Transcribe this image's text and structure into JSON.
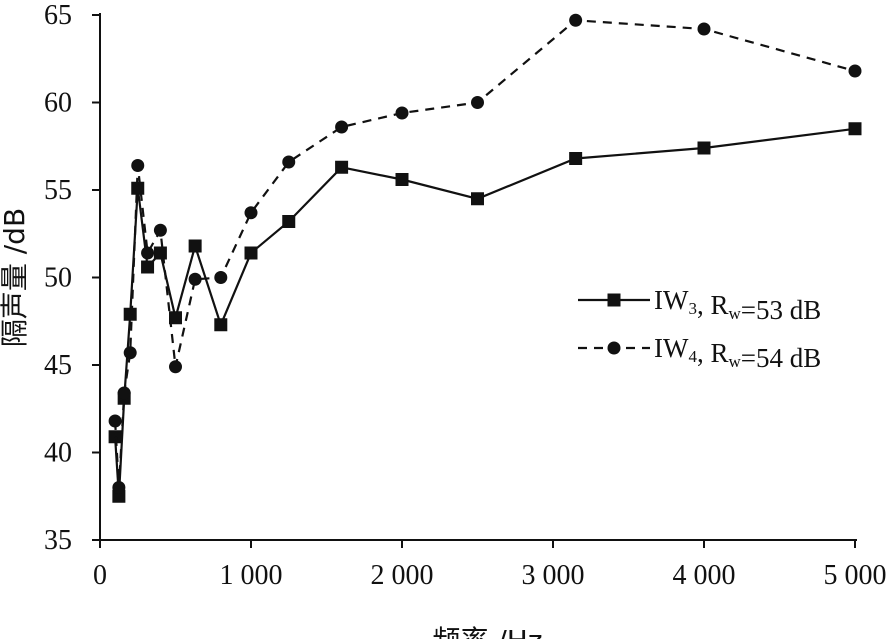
{
  "chart_data": {
    "type": "line",
    "xlabel": "频率 /Hz",
    "ylabel": "隔声量 /dB",
    "xlim": [
      0,
      5000
    ],
    "ylim": [
      35,
      65
    ],
    "xticks": [
      0,
      1000,
      2000,
      3000,
      4000,
      5000
    ],
    "xtick_labels": [
      "0",
      "1 000",
      "2 000",
      "3 000",
      "4 000",
      "5 000"
    ],
    "yticks": [
      35,
      40,
      45,
      50,
      55,
      60,
      65
    ],
    "ytick_labels": [
      "35",
      "40",
      "45",
      "50",
      "55",
      "60",
      "65"
    ],
    "grid": false,
    "legend_position": "right",
    "x": [
      100,
      125,
      160,
      200,
      250,
      315,
      400,
      500,
      630,
      800,
      1000,
      1250,
      1600,
      2000,
      2500,
      3150,
      4000,
      5000
    ],
    "series": [
      {
        "name": "IW3, Rw=53 dB",
        "legend_main": "IW",
        "legend_sub": "3",
        "legend_mid": ", R",
        "legend_sub2": "w",
        "legend_tail": "=53 dB",
        "marker": "square",
        "line_style": "solid",
        "color": "#111111",
        "values": [
          40.9,
          37.5,
          43.1,
          47.9,
          55.1,
          50.6,
          51.4,
          47.7,
          51.8,
          47.3,
          51.4,
          53.2,
          56.3,
          55.6,
          54.5,
          56.8,
          57.4,
          58.5
        ]
      },
      {
        "name": "IW4, Rw=54 dB",
        "legend_main": "IW",
        "legend_sub": "4",
        "legend_mid": ", R",
        "legend_sub2": "w",
        "legend_tail": "=54 dB",
        "marker": "circle",
        "line_style": "dashed",
        "color": "#111111",
        "values": [
          41.8,
          38.0,
          43.4,
          45.7,
          56.4,
          51.4,
          52.7,
          44.9,
          49.9,
          50.0,
          53.7,
          56.6,
          58.6,
          59.4,
          60.0,
          64.7,
          64.2,
          61.8
        ]
      }
    ]
  }
}
